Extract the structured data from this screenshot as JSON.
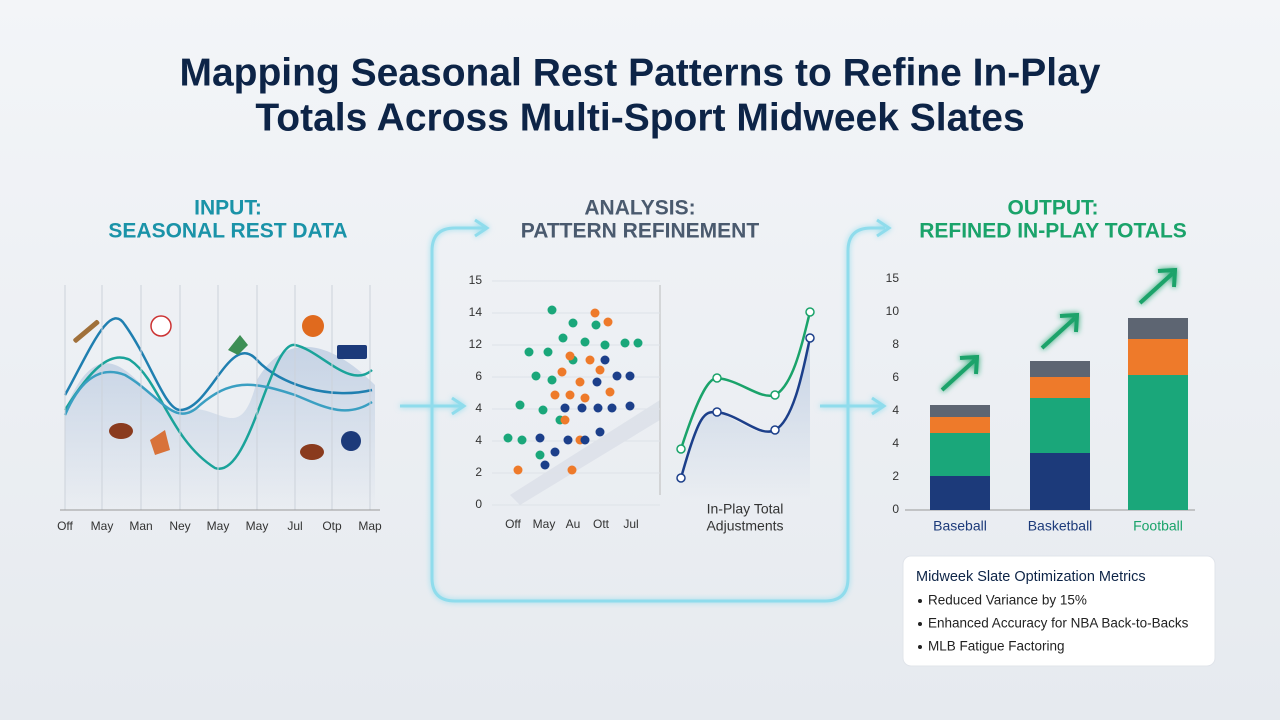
{
  "header": {
    "title_lines": [
      "Mapping Seasonal Rest Patterns to Refine In-Play",
      "Totals Across Multi-Sport Midweek Slates"
    ]
  },
  "input": {
    "heading": [
      "INPUT:",
      "SEASONAL REST DATA"
    ],
    "x_labels": [
      "Off",
      "May",
      "Man",
      "Ney",
      "May",
      "May",
      "Jul",
      "Otp",
      "Map"
    ]
  },
  "analysis": {
    "heading": [
      "ANALYSIS:",
      "PATTERN REFINEMENT"
    ],
    "y_labels": [
      "15",
      "14",
      "12",
      "6",
      "4",
      "4",
      "2",
      "0"
    ],
    "x_labels": [
      "Off",
      "May",
      "Au",
      "Ott",
      "Jul"
    ],
    "caption": [
      "In-Play Total",
      "Adjustments"
    ]
  },
  "output": {
    "heading": [
      "OUTPUT:",
      "REFINED IN-PLAY TOTALS"
    ],
    "y_labels": [
      "15",
      "10",
      "8",
      "6",
      "4",
      "4",
      "2",
      "0"
    ],
    "categories": [
      "Baseball",
      "Basketball",
      "Football"
    ]
  },
  "metrics": {
    "title": "Midweek Slate Optimization Metrics",
    "items": [
      "Reduced Variance by 15%",
      "Enhanced Accuracy for NBA Back-to-Backs",
      "MLB Fatigue Factoring"
    ]
  }
}
